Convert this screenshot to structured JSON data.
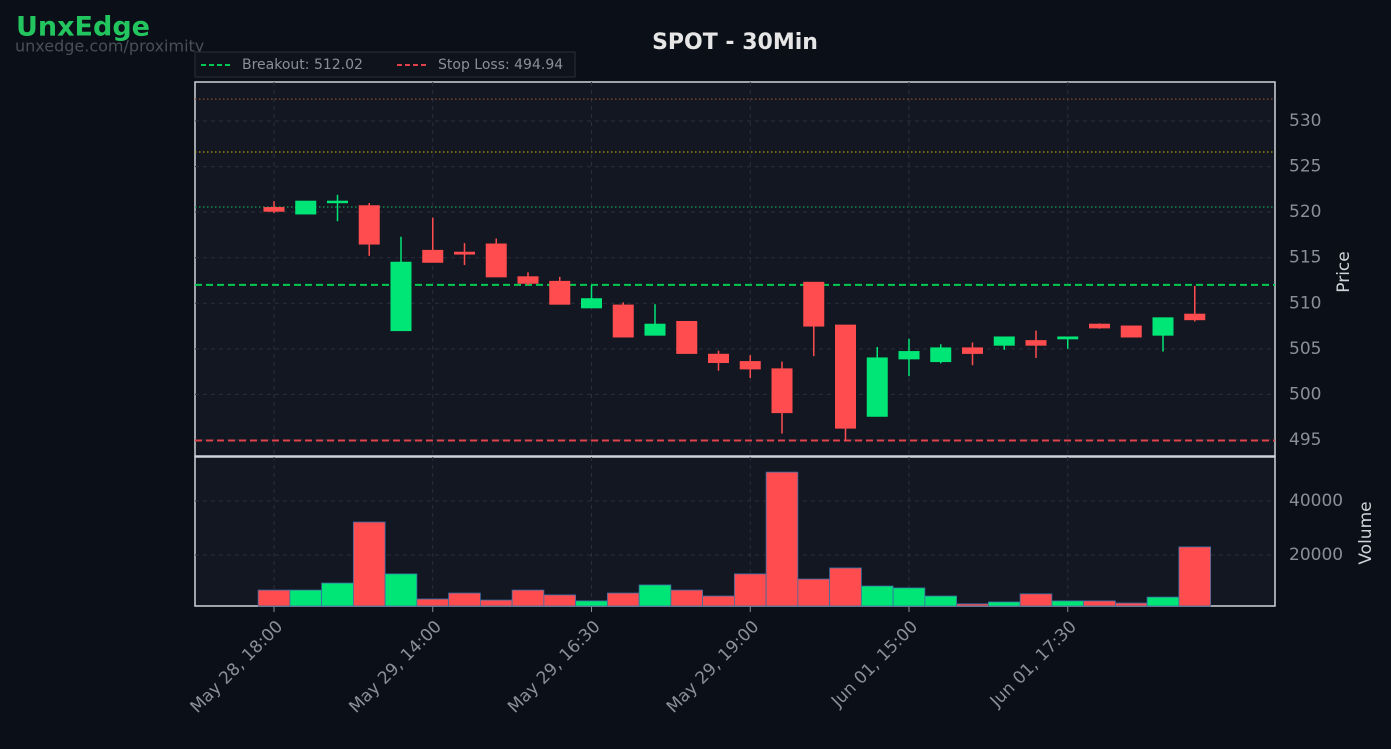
{
  "header": {
    "brand": "UnxEdge",
    "url": "unxedge.com/proximity"
  },
  "chart_data": {
    "type": "candlestick",
    "title": "SPOT - 30Min",
    "ylabel": "Price",
    "y2label": "Volume",
    "categories": [
      "May 28, 18:00",
      null,
      null,
      null,
      null,
      "May 29, 14:00",
      null,
      null,
      null,
      null,
      "May 29, 16:30",
      null,
      null,
      null,
      null,
      "May 29, 19:00",
      null,
      null,
      null,
      null,
      "Jun 01, 15:00",
      null,
      null,
      null,
      null,
      "Jun 01, 17:30",
      null,
      null,
      null,
      null
    ],
    "open": [
      520.5,
      519.8,
      521.1,
      520.7,
      507.0,
      515.8,
      515.6,
      516.5,
      512.9,
      512.4,
      509.5,
      509.8,
      506.5,
      508.0,
      504.4,
      503.6,
      502.8,
      512.3,
      507.6,
      497.6,
      503.9,
      503.6,
      505.1,
      505.4,
      505.9,
      506.1,
      507.7,
      507.5,
      506.5,
      508.8
    ],
    "high": [
      521.2,
      521.2,
      521.9,
      521.0,
      517.3,
      519.4,
      516.6,
      517.1,
      513.4,
      512.9,
      512.0,
      510.1,
      509.9,
      508.0,
      504.8,
      504.3,
      503.6,
      512.3,
      507.6,
      505.2,
      506.1,
      505.5,
      505.7,
      506.3,
      507.0,
      506.3,
      507.8,
      507.5,
      508.4,
      511.9
    ],
    "low": [
      519.9,
      519.8,
      519.0,
      515.2,
      507.0,
      514.5,
      514.2,
      512.9,
      512.0,
      509.9,
      509.5,
      506.3,
      506.5,
      504.5,
      502.6,
      501.8,
      495.7,
      504.2,
      494.9,
      497.6,
      502.0,
      503.4,
      503.2,
      504.9,
      504.0,
      505.0,
      507.2,
      506.3,
      504.7,
      508.0
    ],
    "close": [
      520.1,
      521.2,
      521.2,
      516.5,
      514.5,
      514.5,
      515.4,
      512.9,
      512.2,
      509.9,
      510.5,
      506.3,
      507.7,
      504.5,
      503.5,
      502.8,
      498.0,
      507.5,
      496.3,
      504.0,
      504.7,
      505.1,
      504.5,
      506.3,
      505.4,
      506.3,
      507.3,
      506.3,
      508.4,
      508.2
    ],
    "volume": [
      7000,
      7000,
      9600,
      32200,
      13000,
      3700,
      5900,
      3300,
      7000,
      5200,
      3000,
      5900,
      8900,
      7000,
      4800,
      13000,
      50700,
      11100,
      15200,
      8500,
      7800,
      4800,
      1900,
      2600,
      5600,
      3000,
      3000,
      2200,
      4400,
      23000
    ],
    "up_color": "#00e676",
    "down_color": "#ff4d4f",
    "ylim": [
      493.24,
      534.28
    ],
    "yticks": [
      495,
      500,
      505,
      510,
      515,
      520,
      525,
      530
    ],
    "y2lim": [
      1100,
      56300
    ],
    "y2ticks": [
      20000,
      40000
    ],
    "lines": [
      {
        "name": "Breakout: 512.02",
        "value": 512.02,
        "color": "#00c853"
      },
      {
        "name": "Stop Loss: 494.94",
        "value": 494.94,
        "color": "#e0424b"
      }
    ],
    "levels": [
      {
        "value": 520.56,
        "color": "#1a9e5a"
      },
      {
        "value": 526.6,
        "color": "#b8960c"
      },
      {
        "value": 532.4,
        "color": "#8b4a2a"
      }
    ],
    "grid": true
  }
}
